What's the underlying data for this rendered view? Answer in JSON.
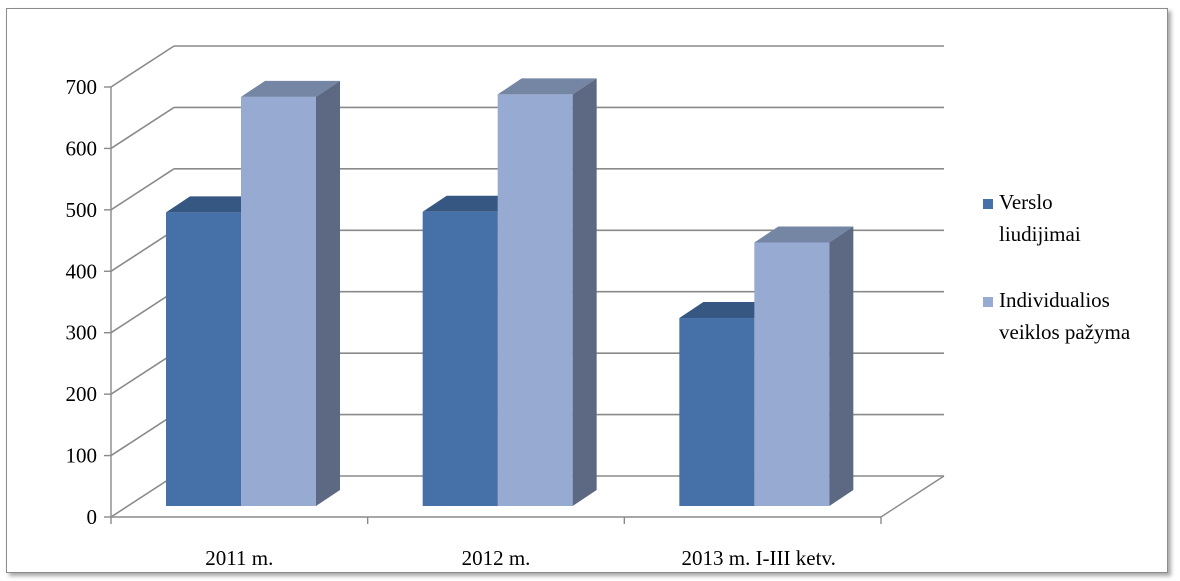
{
  "chart_data": {
    "type": "bar",
    "style": "3d-clustered-column",
    "categories": [
      "2011 m.",
      "2012 m.",
      "2013 m. I-III ketv."
    ],
    "series": [
      {
        "name": "Verslo liudijimai",
        "legend_lines": [
          "Verslo",
          "liudijimai"
        ],
        "values": [
          478,
          479,
          306
        ],
        "color": "#4670a8"
      },
      {
        "name": "Individualios veiklos pažyma",
        "legend_lines": [
          "Individualios",
          "veiklos pažyma"
        ],
        "values": [
          666,
          670,
          429
        ],
        "color": "#96aad2"
      }
    ],
    "ylim": [
      0,
      700
    ],
    "yticks": [
      "0",
      "100",
      "200",
      "300",
      "400",
      "500",
      "600",
      "700"
    ],
    "grid": true,
    "legend": "right",
    "title": "",
    "xlabel": "",
    "ylabel": ""
  }
}
